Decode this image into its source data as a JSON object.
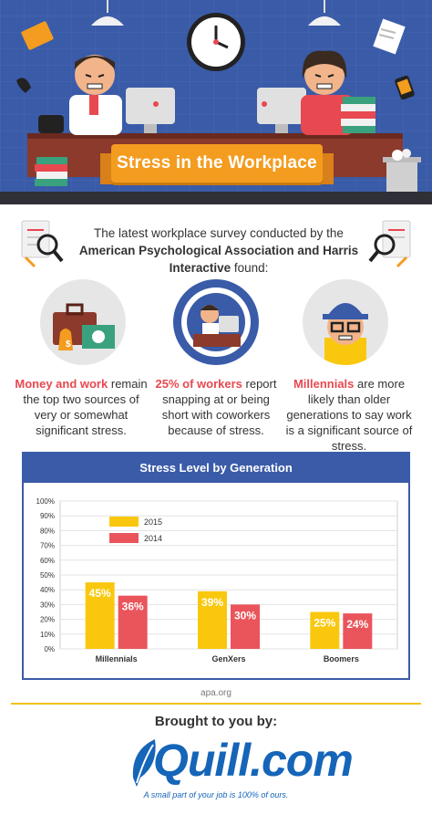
{
  "header": {
    "title": "Stress in the Workplace"
  },
  "intro": {
    "prefix": "The latest workplace survey conducted by the ",
    "org": "American Psychological Association and Harris Interactive",
    "suffix": " found:"
  },
  "stats": [
    {
      "highlight": "Money and work",
      "text": "remain the top two sources of very or somewhat significant stress."
    },
    {
      "highlight": "25% of workers",
      "text": "report snapping at or being short with coworkers because of stress."
    },
    {
      "highlight": "Millennials",
      "text": "are more likely than older generations to say work is a significant source of stress."
    }
  ],
  "chart_data": {
    "type": "bar",
    "title": "Stress Level by Generation",
    "categories": [
      "Millennials",
      "GenXers",
      "Boomers"
    ],
    "series": [
      {
        "name": "2015",
        "color": "#f9c80e",
        "values": [
          45,
          39,
          25
        ]
      },
      {
        "name": "2014",
        "color": "#ea555b",
        "values": [
          36,
          30,
          24
        ]
      }
    ],
    "yticks": [
      "0%",
      "10%",
      "20%",
      "30%",
      "40%",
      "50%",
      "60%",
      "70%",
      "80%",
      "90%",
      "100%"
    ],
    "ylim": [
      0,
      100
    ],
    "grid": true,
    "legend": "top-left"
  },
  "source": "apa.org",
  "footer": {
    "brought": "Brought to you by:",
    "logo": "Quill.com",
    "tagline": "A small part of your job is 100% of ours."
  },
  "colors": {
    "accent_blue": "#3a5ba8",
    "accent_orange": "#f39c1f",
    "accent_red": "#e8484f",
    "accent_yellow": "#f9c80e"
  }
}
